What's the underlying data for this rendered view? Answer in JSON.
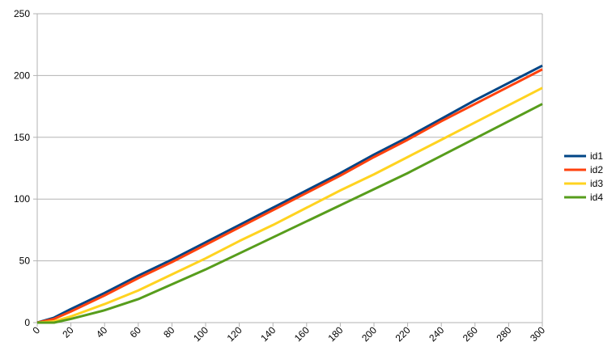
{
  "chart_data": {
    "type": "line",
    "x": [
      0,
      10,
      20,
      40,
      60,
      80,
      100,
      120,
      140,
      160,
      180,
      200,
      220,
      240,
      260,
      280,
      300
    ],
    "series": [
      {
        "name": "id1",
        "color": "#004586",
        "values": [
          0,
          4,
          11,
          24,
          38,
          51,
          65,
          79,
          93,
          107,
          121,
          136,
          150,
          165,
          180,
          194,
          208
        ]
      },
      {
        "name": "id2",
        "color": "#ff420e",
        "values": [
          0,
          3,
          9,
          22,
          36,
          49,
          63,
          77,
          91,
          105,
          119,
          134,
          148,
          163,
          177,
          191,
          205
        ]
      },
      {
        "name": "id3",
        "color": "#ffd320",
        "values": [
          0,
          1,
          5,
          15,
          26,
          39,
          52,
          66,
          79,
          93,
          107,
          120,
          134,
          148,
          162,
          176,
          190
        ]
      },
      {
        "name": "id4",
        "color": "#579d1c",
        "values": [
          0,
          0,
          3,
          10,
          19,
          31,
          43,
          56,
          69,
          82,
          95,
          108,
          121,
          135,
          149,
          163,
          177
        ]
      }
    ],
    "xlim": [
      0,
      300
    ],
    "xticks": [
      0,
      20,
      40,
      60,
      80,
      100,
      120,
      140,
      160,
      180,
      200,
      220,
      240,
      260,
      280,
      300
    ],
    "ylim": [
      0,
      250
    ],
    "yticks": [
      0,
      50,
      100,
      150,
      200,
      250
    ],
    "grid": true,
    "legend": "right"
  }
}
